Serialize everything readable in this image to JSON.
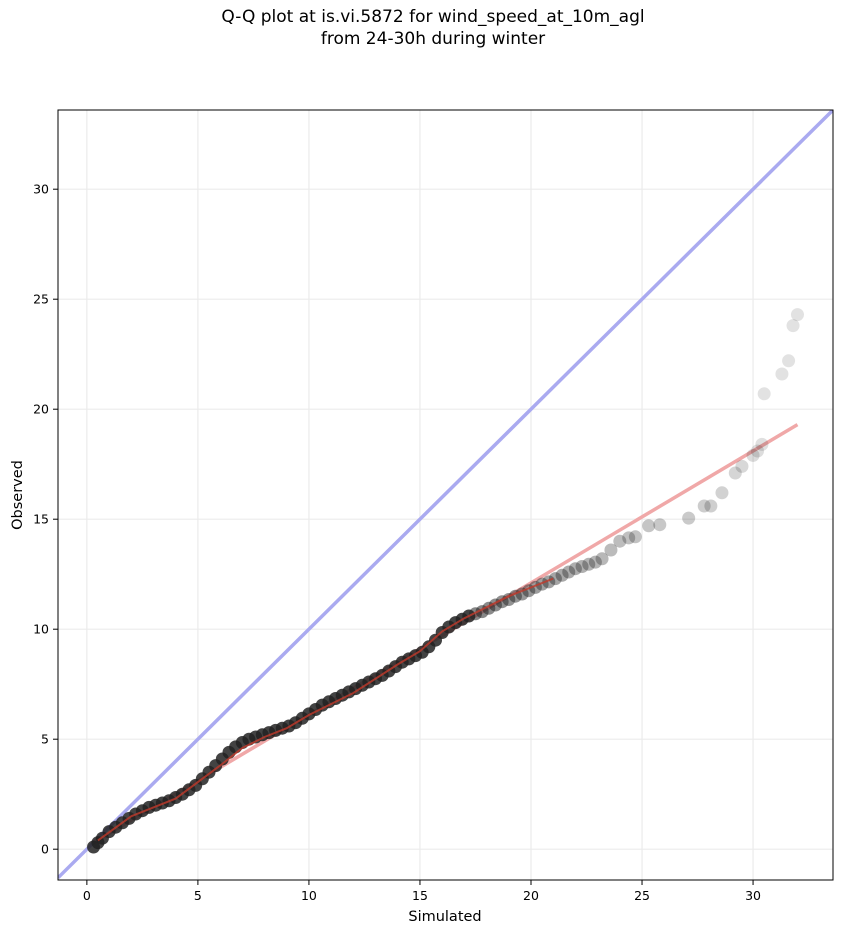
{
  "chart_data": {
    "type": "scatter",
    "title": "Q-Q plot at is.vi.5872 for wind_speed_at_10m_agl",
    "subtitle": "from 24-30h during winter",
    "xlabel": "Simulated",
    "ylabel": "Observed",
    "xlim": [
      -1.3,
      33.6
    ],
    "ylim": [
      -1.4,
      33.6
    ],
    "xticks": [
      0,
      5,
      10,
      15,
      20,
      25,
      30
    ],
    "yticks": [
      0,
      5,
      10,
      15,
      20,
      25,
      30
    ],
    "grid": true,
    "legend": "none",
    "reference_line": {
      "description": "1:1 line",
      "color": "#aaaaf0",
      "from": [
        -1.3,
        -1.3
      ],
      "to": [
        33.6,
        33.6
      ]
    },
    "fit_line": {
      "color": "#f0a8a8",
      "from": [
        0.3,
        0.3
      ],
      "to": [
        32.0,
        19.3
      ]
    },
    "quantile_line": {
      "color": "#c0392b",
      "x": [
        0.5,
        2,
        4,
        6,
        7,
        8,
        9,
        10,
        12,
        14,
        15,
        16,
        17,
        18,
        19,
        20,
        21
      ],
      "y": [
        0.4,
        1.5,
        2.3,
        3.8,
        4.6,
        5.1,
        5.5,
        6.1,
        7.1,
        8.4,
        9.0,
        9.9,
        10.5,
        11.0,
        11.5,
        11.9,
        12.3
      ]
    },
    "point_color": "#222222",
    "dense_points": {
      "x": [
        0.3,
        0.5,
        0.7,
        1.0,
        1.3,
        1.6,
        1.9,
        2.2,
        2.5,
        2.8,
        3.1,
        3.4,
        3.7,
        4.0,
        4.3,
        4.6,
        4.9,
        5.2,
        5.5,
        5.8,
        6.1,
        6.4,
        6.7,
        7.0,
        7.3,
        7.6,
        7.9,
        8.2,
        8.5,
        8.8,
        9.1,
        9.4,
        9.7,
        10.0,
        10.3,
        10.6,
        10.9,
        11.2,
        11.5,
        11.8,
        12.1,
        12.4,
        12.7,
        13.0,
        13.3,
        13.6,
        13.9,
        14.2,
        14.5,
        14.8,
        15.1,
        15.4,
        15.7,
        16.0,
        16.3,
        16.6,
        16.9,
        17.2
      ],
      "y": [
        0.1,
        0.3,
        0.5,
        0.8,
        1.0,
        1.2,
        1.4,
        1.6,
        1.75,
        1.9,
        2.0,
        2.1,
        2.2,
        2.35,
        2.5,
        2.7,
        2.9,
        3.2,
        3.5,
        3.8,
        4.1,
        4.4,
        4.65,
        4.85,
        5.0,
        5.1,
        5.2,
        5.3,
        5.4,
        5.5,
        5.6,
        5.75,
        5.95,
        6.15,
        6.35,
        6.55,
        6.7,
        6.85,
        7.0,
        7.15,
        7.3,
        7.45,
        7.6,
        7.75,
        7.9,
        8.1,
        8.3,
        8.5,
        8.65,
        8.8,
        8.95,
        9.2,
        9.5,
        9.85,
        10.1,
        10.3,
        10.45,
        10.6
      ]
    },
    "sparse_points": {
      "x": [
        17.5,
        17.8,
        18.1,
        18.4,
        18.7,
        19.0,
        19.3,
        19.6,
        19.9,
        20.2,
        20.5,
        20.8,
        21.1,
        21.4,
        21.7,
        22.0,
        22.3,
        22.6,
        22.9,
        23.2,
        23.6,
        24.0,
        24.4,
        24.7,
        25.3,
        25.8,
        27.1,
        27.8,
        28.1,
        28.6,
        29.2,
        29.5,
        30.0,
        30.2,
        30.4,
        30.5,
        31.3,
        31.6,
        31.8,
        32.0
      ],
      "y": [
        10.7,
        10.8,
        10.95,
        11.1,
        11.25,
        11.35,
        11.5,
        11.6,
        11.75,
        11.9,
        12.05,
        12.15,
        12.3,
        12.45,
        12.6,
        12.75,
        12.85,
        12.95,
        13.05,
        13.2,
        13.6,
        14.0,
        14.15,
        14.2,
        14.7,
        14.75,
        15.05,
        15.6,
        15.6,
        16.2,
        17.1,
        17.4,
        17.9,
        18.1,
        18.4,
        20.7,
        21.6,
        22.2,
        23.8,
        24.3
      ]
    }
  }
}
